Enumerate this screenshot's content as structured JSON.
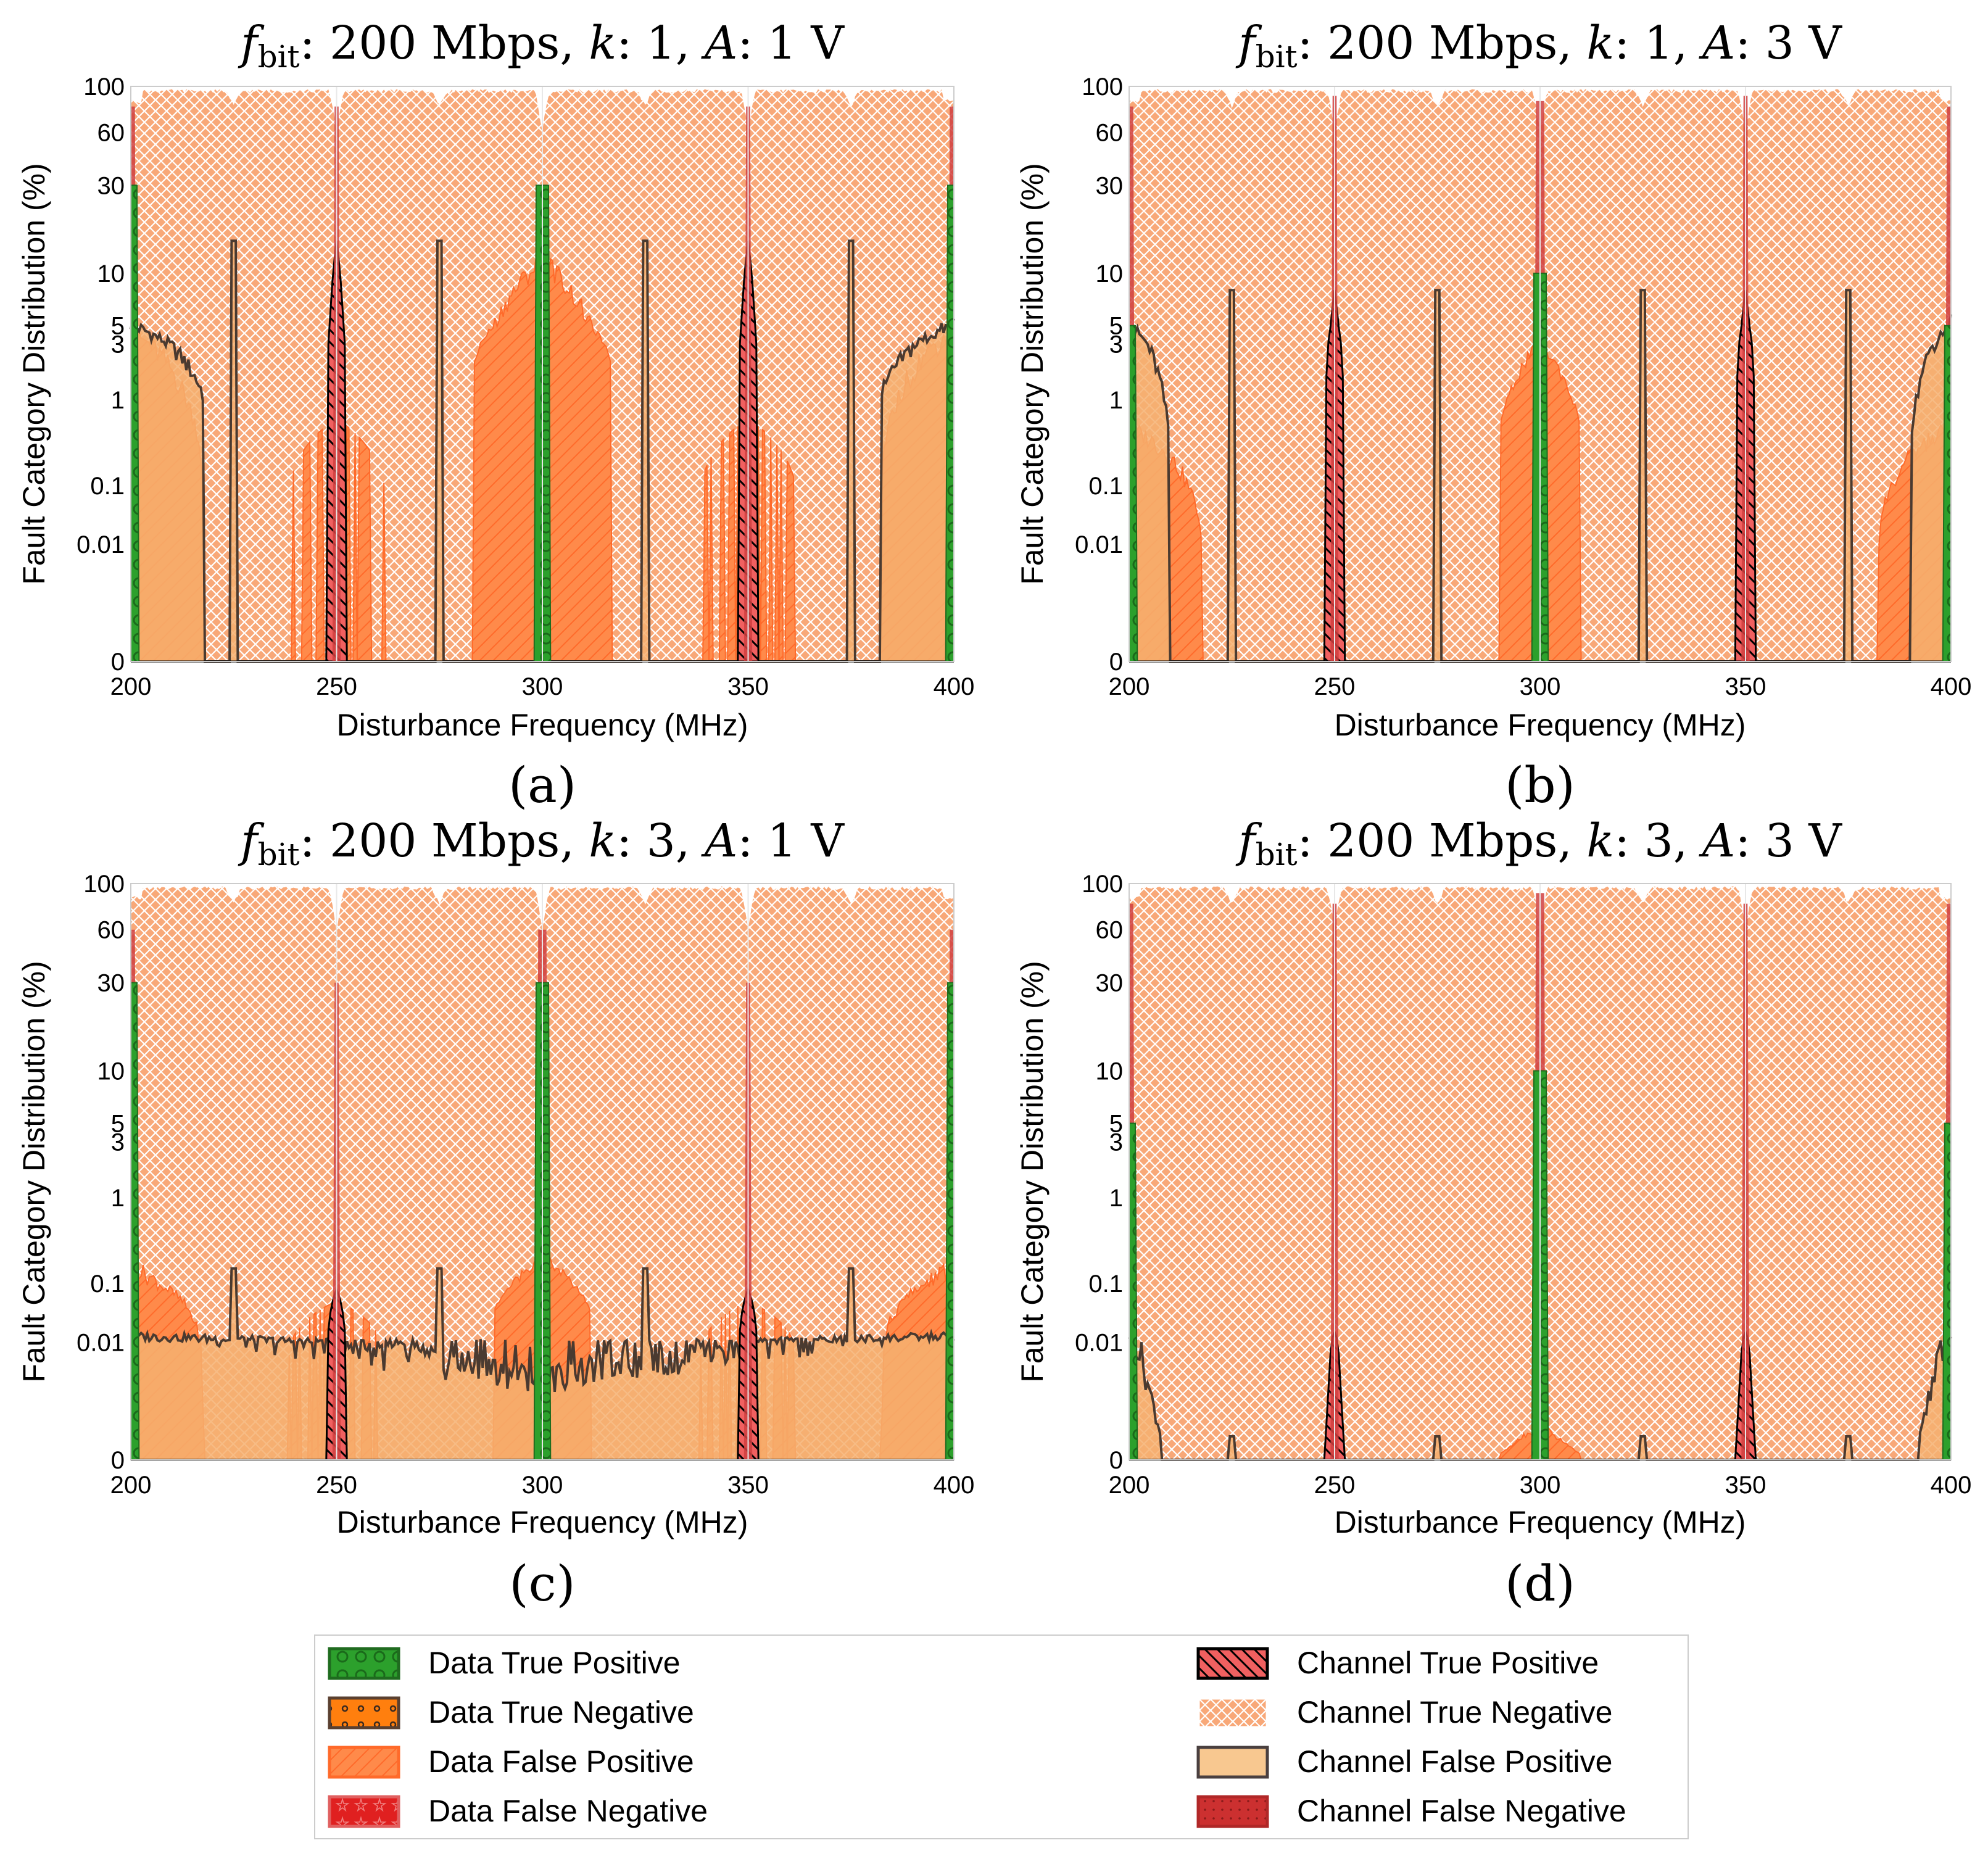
{
  "figure": {
    "legend": [
      {
        "label": "Data True Positive",
        "color": "#2ca02c",
        "edge": "#1f6b1f",
        "hatch": "circles"
      },
      {
        "label": "Data True Negative",
        "color": "#ff7f0e",
        "edge": "#5a4030",
        "hatch": "dots"
      },
      {
        "label": "Data False Positive",
        "color": "#ff9a5a",
        "edge": "#ff6a2a",
        "hatch": "diag"
      },
      {
        "label": "Data False Negative",
        "color": "#e02020",
        "edge": "#e06060",
        "hatch": "stars"
      },
      {
        "label": "Channel True Positive",
        "color": "#f06060",
        "edge": "#000000",
        "hatch": "backdiag"
      },
      {
        "label": "Channel True Negative",
        "color": "#f8b07a",
        "edge": "#ffffff",
        "hatch": "cross"
      },
      {
        "label": "Channel False Positive",
        "color": "#f8c890",
        "edge": "#4a4040",
        "hatch": "none"
      },
      {
        "label": "Channel False Negative",
        "color": "#cc3030",
        "edge": "#b02828",
        "hatch": "dotted"
      }
    ]
  },
  "chart_data": [
    {
      "type": "area",
      "panel_label": "(a)",
      "title": {
        "f": "f",
        "sub": "bit",
        "rest1": ": 200 Mbps, ",
        "k": "k",
        "rest2": ": 1, ",
        "a": "A",
        "rest3": ": 1 V"
      },
      "xlabel": "Disturbance Frequency (MHz)",
      "ylabel": "Fault Category Distribution (%)",
      "xlim": [
        200,
        400
      ],
      "xticks": [
        "200",
        "250",
        "300",
        "350",
        "400"
      ],
      "yticks": [
        "0",
        "0.01",
        "0.1",
        "1",
        "3",
        "5",
        "10",
        "30",
        "60",
        "100"
      ],
      "yscale": "symlog",
      "grid": true,
      "series_names": [
        "Data True Positive",
        "Data False Positive",
        "Channel True Positive",
        "Channel False Positive",
        "Channel False Negative",
        "Channel True Negative"
      ],
      "profiles": {
        "cfp_edge": 6,
        "cfp_edge_low": 1.2,
        "cfp_edge_width": 18,
        "dfp_edge": 5,
        "dfp_center": 12,
        "dfp_center_width": 17,
        "dfp_quarter_spikes": 0.6,
        "ctp_quarter": 15,
        "cfp_eighth_spikes": 15,
        "cfn_edge": 80,
        "cfn_quarter": 80,
        "cfn_center": 30,
        "dtp_edge": 30,
        "dtp_center": 30,
        "floor": 0
      }
    },
    {
      "type": "area",
      "panel_label": "(b)",
      "title": {
        "f": "f",
        "sub": "bit",
        "rest1": ": 200 Mbps, ",
        "k": "k",
        "rest2": ": 1, ",
        "a": "A",
        "rest3": ": 3 V"
      },
      "xlabel": "Disturbance Frequency (MHz)",
      "ylabel": "Fault Category Distribution (%)",
      "xlim": [
        200,
        400
      ],
      "xticks": [
        "200",
        "250",
        "300",
        "350",
        "400"
      ],
      "yticks": [
        "0",
        "0.01",
        "0.1",
        "1",
        "3",
        "5",
        "10",
        "30",
        "60",
        "100"
      ],
      "yscale": "symlog",
      "grid": true,
      "series_names": [
        "Data True Positive",
        "Data False Positive",
        "Channel True Positive",
        "Channel False Positive",
        "Channel False Negative",
        "Channel True Negative"
      ],
      "profiles": {
        "cfp_edge": 6,
        "cfp_edge_low": 0.3,
        "cfp_edge_width": 10,
        "dfp_edge": 0.6,
        "dfp_center": 3,
        "dfp_center_width": 10,
        "dfp_quarter_spikes": 0,
        "ctp_quarter": 8,
        "cfp_eighth_spikes": 8,
        "cfn_edge": 80,
        "cfn_quarter": 90,
        "cfn_center": 85,
        "dtp_edge": 5,
        "dtp_center": 10,
        "floor": 0
      }
    },
    {
      "type": "area",
      "panel_label": "(c)",
      "title": {
        "f": "f",
        "sub": "bit",
        "rest1": ": 200 Mbps, ",
        "k": "k",
        "rest2": ": 3, ",
        "a": "A",
        "rest3": ": 1 V"
      },
      "xlabel": "Disturbance Frequency (MHz)",
      "ylabel": "Fault Category Distribution (%)",
      "xlim": [
        200,
        400
      ],
      "xticks": [
        "200",
        "250",
        "300",
        "350",
        "400"
      ],
      "yticks": [
        "0",
        "0.01",
        "0.1",
        "1",
        "3",
        "5",
        "10",
        "30",
        "60",
        "100"
      ],
      "yscale": "symlog",
      "grid": true,
      "series_names": [
        "Data True Positive",
        "Data False Positive",
        "Channel True Positive",
        "Channel False Positive",
        "Channel False Negative",
        "Channel True Negative"
      ],
      "profiles": {
        "cfp_edge": 0.015,
        "cfp_edge_low": 0.008,
        "cfp_edge_width": 100,
        "dfp_edge": 0.2,
        "dfp_center": 0.2,
        "dfp_center_width": 12,
        "dfp_quarter_spikes": 0.05,
        "ctp_quarter": 0.08,
        "cfp_eighth_spikes": 0.15,
        "cfn_edge": 60,
        "cfn_quarter": 30,
        "cfn_center": 60,
        "dtp_edge": 30,
        "dtp_center": 30,
        "floor": 0.005
      }
    },
    {
      "type": "area",
      "panel_label": "(d)",
      "title": {
        "f": "f",
        "sub": "bit",
        "rest1": ": 200 Mbps, ",
        "k": "k",
        "rest2": ": 3, ",
        "a": "A",
        "rest3": ": 3 V"
      },
      "xlabel": "Disturbance Frequency (MHz)",
      "ylabel": "Fault Category Distribution (%)",
      "xlim": [
        200,
        400
      ],
      "xticks": [
        "200",
        "250",
        "300",
        "350",
        "400"
      ],
      "yticks": [
        "0",
        "0.01",
        "0.1",
        "1",
        "3",
        "5",
        "10",
        "30",
        "60",
        "100"
      ],
      "yscale": "symlog",
      "grid": true,
      "series_names": [
        "Data True Positive",
        "Data False Positive",
        "Channel True Positive",
        "Channel False Positive",
        "Channel False Negative",
        "Channel True Negative"
      ],
      "profiles": {
        "cfp_edge": 0.015,
        "cfp_edge_low": 0.002,
        "cfp_edge_width": 8,
        "dfp_edge": 0,
        "dfp_center": 0.003,
        "dfp_center_width": 10,
        "dfp_quarter_spikes": 0,
        "ctp_quarter": 0.015,
        "cfp_eighth_spikes": 0.002,
        "cfn_edge": 80,
        "cfn_quarter": 80,
        "cfn_center": 90,
        "dtp_edge": 5,
        "dtp_center": 10,
        "floor": 0
      }
    }
  ]
}
